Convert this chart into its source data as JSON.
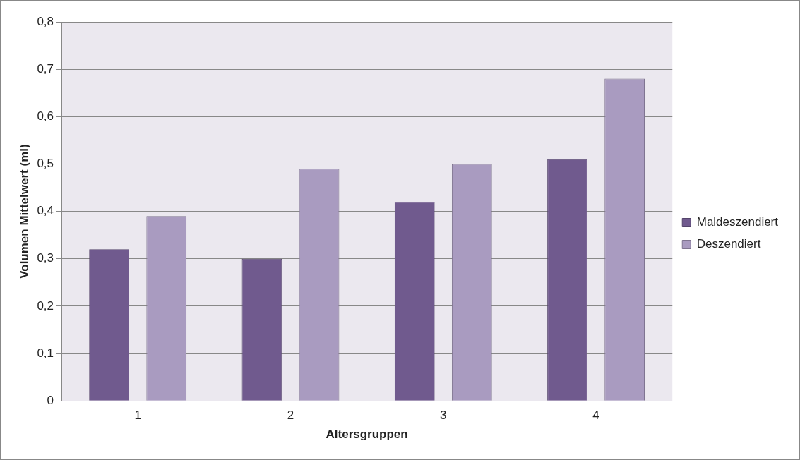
{
  "chart_data": {
    "type": "bar",
    "xlabel": "Altersgruppen",
    "ylabel": "Volumen Mittelwert (ml)",
    "categories": [
      "1",
      "2",
      "3",
      "4"
    ],
    "series": [
      {
        "name": "Maldeszendiert",
        "color": "#705a8e",
        "values": [
          0.32,
          0.3,
          0.42,
          0.51
        ]
      },
      {
        "name": "Deszendiert",
        "color": "#a99bc0",
        "values": [
          0.39,
          0.49,
          0.5,
          0.68
        ]
      }
    ],
    "ylim": [
      0,
      0.8
    ],
    "yticks": [
      {
        "value": 0,
        "label": "0"
      },
      {
        "value": 0.1,
        "label": "0,1"
      },
      {
        "value": 0.2,
        "label": "0,2"
      },
      {
        "value": 0.3,
        "label": "0,3"
      },
      {
        "value": 0.4,
        "label": "0,4"
      },
      {
        "value": 0.5,
        "label": "0,5"
      },
      {
        "value": 0.6,
        "label": "0,6"
      },
      {
        "value": 0.7,
        "label": "0,7"
      },
      {
        "value": 0.8,
        "label": "0,8"
      }
    ],
    "grid": "y",
    "legend": "right"
  }
}
